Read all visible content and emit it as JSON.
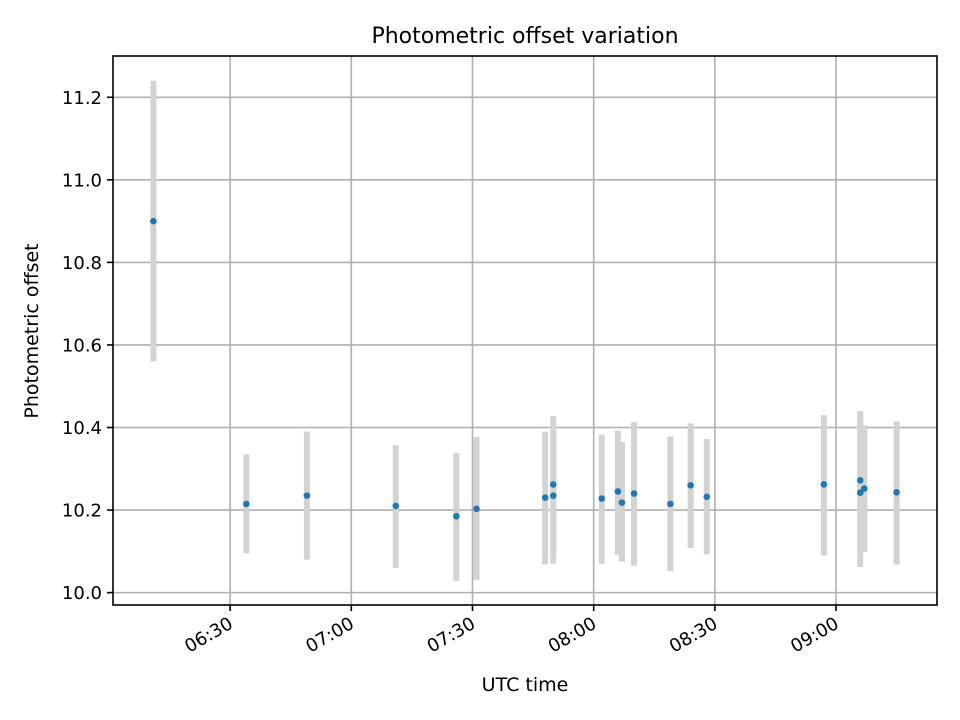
{
  "chart_data": {
    "type": "scatter",
    "title": "Photometric offset variation",
    "xlabel": "UTC time",
    "ylabel": "Photometric offset",
    "x_axis": "time",
    "xlim": [
      "06:01",
      "09:25"
    ],
    "ylim": [
      9.97,
      11.3
    ],
    "x_ticks": [
      "06:30",
      "07:00",
      "07:30",
      "08:00",
      "08:30",
      "09:00"
    ],
    "y_ticks": [
      "10.0",
      "10.2",
      "10.4",
      "10.6",
      "10.8",
      "11.0",
      "11.2"
    ],
    "grid": true,
    "legend": false,
    "colors": {
      "point": "#1f77b4",
      "error_bar": "#d3d3d3",
      "grid": "#b0b0b0"
    },
    "points": [
      {
        "time": "06:11",
        "y": 10.9,
        "ymin": 10.56,
        "ymax": 11.24
      },
      {
        "time": "06:34",
        "y": 10.215,
        "ymin": 10.095,
        "ymax": 10.335
      },
      {
        "time": "06:49",
        "y": 10.235,
        "ymin": 10.08,
        "ymax": 10.39
      },
      {
        "time": "07:11",
        "y": 10.21,
        "ymin": 10.06,
        "ymax": 10.357
      },
      {
        "time": "07:26",
        "y": 10.185,
        "ymin": 10.028,
        "ymax": 10.338
      },
      {
        "time": "07:31",
        "y": 10.203,
        "ymin": 10.03,
        "ymax": 10.377
      },
      {
        "time": "07:48",
        "y": 10.23,
        "ymin": 10.068,
        "ymax": 10.39
      },
      {
        "time": "07:50",
        "y": 10.262,
        "ymin": 10.095,
        "ymax": 10.428
      },
      {
        "time": "07:50",
        "y": 10.235,
        "ymin": 10.07,
        "ymax": 10.395
      },
      {
        "time": "08:02",
        "y": 10.228,
        "ymin": 10.07,
        "ymax": 10.383
      },
      {
        "time": "08:06",
        "y": 10.245,
        "ymin": 10.092,
        "ymax": 10.392
      },
      {
        "time": "08:07",
        "y": 10.218,
        "ymin": 10.075,
        "ymax": 10.365
      },
      {
        "time": "08:10",
        "y": 10.24,
        "ymin": 10.065,
        "ymax": 10.413
      },
      {
        "time": "08:19",
        "y": 10.215,
        "ymin": 10.052,
        "ymax": 10.378
      },
      {
        "time": "08:24",
        "y": 10.26,
        "ymin": 10.108,
        "ymax": 10.41
      },
      {
        "time": "08:28",
        "y": 10.232,
        "ymin": 10.093,
        "ymax": 10.372
      },
      {
        "time": "08:57",
        "y": 10.262,
        "ymin": 10.09,
        "ymax": 10.43
      },
      {
        "time": "09:06",
        "y": 10.272,
        "ymin": 10.105,
        "ymax": 10.44
      },
      {
        "time": "09:06",
        "y": 10.242,
        "ymin": 10.062,
        "ymax": 10.42
      },
      {
        "time": "09:07",
        "y": 10.252,
        "ymin": 10.098,
        "ymax": 10.405
      },
      {
        "time": "09:15",
        "y": 10.243,
        "ymin": 10.068,
        "ymax": 10.415
      }
    ]
  }
}
